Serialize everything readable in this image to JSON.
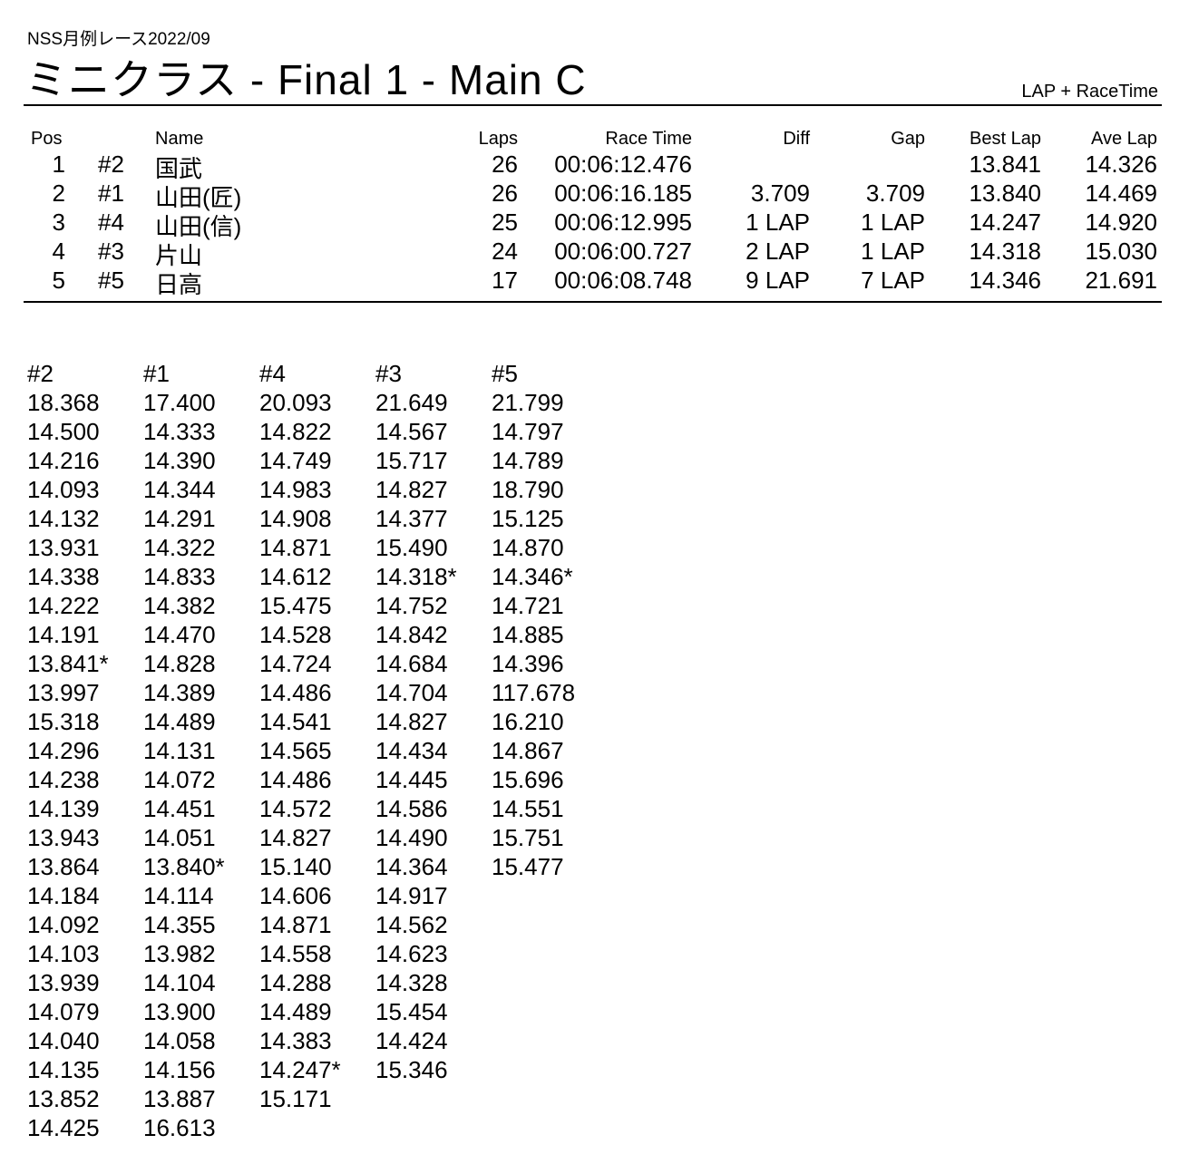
{
  "header": {
    "event": "NSS月例レース2022/09",
    "title": "ミニクラス  -  Final 1  -  Main C",
    "mode": "LAP + RaceTime"
  },
  "results": {
    "columns": [
      "Pos",
      "Name",
      "Laps",
      "Race Time",
      "Diff",
      "Gap",
      "Best Lap",
      "Ave Lap"
    ],
    "rows": [
      {
        "pos": "1",
        "num": "#2",
        "name": "国武",
        "laps": "26",
        "race_time": "00:06:12.476",
        "diff": "",
        "gap": "",
        "best": "13.841",
        "ave": "14.326"
      },
      {
        "pos": "2",
        "num": "#1",
        "name": "山田(匠)",
        "laps": "26",
        "race_time": "00:06:16.185",
        "diff": "3.709",
        "gap": "3.709",
        "best": "13.840",
        "ave": "14.469"
      },
      {
        "pos": "3",
        "num": "#4",
        "name": "山田(信)",
        "laps": "25",
        "race_time": "00:06:12.995",
        "diff": "1 LAP",
        "gap": "1 LAP",
        "best": "14.247",
        "ave": "14.920"
      },
      {
        "pos": "4",
        "num": "#3",
        "name": "片山",
        "laps": "24",
        "race_time": "00:06:00.727",
        "diff": "2 LAP",
        "gap": "1 LAP",
        "best": "14.318",
        "ave": "15.030"
      },
      {
        "pos": "5",
        "num": "#5",
        "name": "日高",
        "laps": "17",
        "race_time": "00:06:08.748",
        "diff": "9 LAP",
        "gap": "7 LAP",
        "best": "14.346",
        "ave": "21.691"
      }
    ]
  },
  "laps": [
    {
      "car": "#2",
      "times": [
        "18.368",
        "14.500",
        "14.216",
        "14.093",
        "14.132",
        "13.931",
        "14.338",
        "14.222",
        "14.191",
        "13.841*",
        "13.997",
        "15.318",
        "14.296",
        "14.238",
        "14.139",
        "13.943",
        "13.864",
        "14.184",
        "14.092",
        "14.103",
        "13.939",
        "14.079",
        "14.040",
        "14.135",
        "13.852",
        "14.425"
      ]
    },
    {
      "car": "#1",
      "times": [
        "17.400",
        "14.333",
        "14.390",
        "14.344",
        "14.291",
        "14.322",
        "14.833",
        "14.382",
        "14.470",
        "14.828",
        "14.389",
        "14.489",
        "14.131",
        "14.072",
        "14.451",
        "14.051",
        "13.840*",
        "14.114",
        "14.355",
        "13.982",
        "14.104",
        "13.900",
        "14.058",
        "14.156",
        "13.887",
        "16.613"
      ]
    },
    {
      "car": "#4",
      "times": [
        "20.093",
        "14.822",
        "14.749",
        "14.983",
        "14.908",
        "14.871",
        "14.612",
        "15.475",
        "14.528",
        "14.724",
        "14.486",
        "14.541",
        "14.565",
        "14.486",
        "14.572",
        "14.827",
        "15.140",
        "14.606",
        "14.871",
        "14.558",
        "14.288",
        "14.489",
        "14.383",
        "14.247*",
        "15.171"
      ]
    },
    {
      "car": "#3",
      "times": [
        "21.649",
        "14.567",
        "15.717",
        "14.827",
        "14.377",
        "15.490",
        "14.318*",
        "14.752",
        "14.842",
        "14.684",
        "14.704",
        "14.827",
        "14.434",
        "14.445",
        "14.586",
        "14.490",
        "14.364",
        "14.917",
        "14.562",
        "14.623",
        "14.328",
        "15.454",
        "14.424",
        "15.346"
      ]
    },
    {
      "car": "#5",
      "times": [
        "21.799",
        "14.797",
        "14.789",
        "18.790",
        "15.125",
        "14.870",
        "14.346*",
        "14.721",
        "14.885",
        "14.396",
        "117.678",
        "16.210",
        "14.867",
        "15.696",
        "14.551",
        "15.751",
        "15.477"
      ]
    }
  ]
}
